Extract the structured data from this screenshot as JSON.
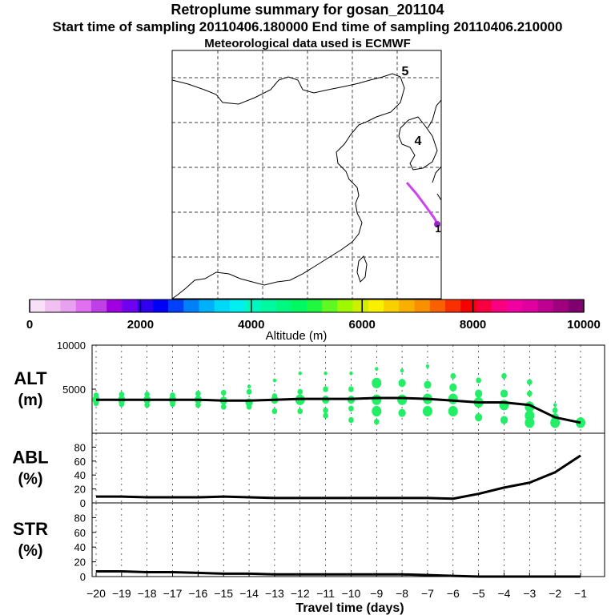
{
  "header": {
    "title": "Retroplume summary for gosan_201104",
    "sampling": "Start time of sampling 20110406.180000     End time of sampling 20110406.210000",
    "met": "Meteorological data used is ECMWF"
  },
  "map": {
    "day_markers": [
      "5",
      "4",
      "1"
    ],
    "colors": {
      "track": "#cc44ee",
      "coast": "#000000",
      "grid": "#000000"
    }
  },
  "colorbar": {
    "ticks": [
      "0",
      "2000",
      "4000",
      "6000",
      "8000",
      "10000"
    ],
    "label": "Altitude (m)",
    "colors": [
      "#f8e0f8",
      "#f0c0f0",
      "#e8a0f0",
      "#e070f0",
      "#c040e8",
      "#a000e0",
      "#7000f0",
      "#3000f0",
      "#0000f8",
      "#0040f8",
      "#0080f8",
      "#00b0f8",
      "#00d8f8",
      "#00f0f0",
      "#00f8c0",
      "#00f8a0",
      "#00f880",
      "#00f860",
      "#20f840",
      "#60f820",
      "#a0f800",
      "#d0f000",
      "#f8f000",
      "#f8d000",
      "#f8b000",
      "#f89000",
      "#f86000",
      "#f83000",
      "#f80000",
      "#f80040",
      "#f80080",
      "#f000a0",
      "#e000a0",
      "#c00090",
      "#a00080",
      "#800070"
    ]
  },
  "chart_data": [
    {
      "type": "line+scatter",
      "name": "ALT",
      "ylabel": [
        "ALT",
        "(m)"
      ],
      "yticks": [
        "10000",
        "5000"
      ],
      "ylim": [
        0,
        10000
      ],
      "x": [
        -20,
        -19,
        -18,
        -17,
        -16,
        -15,
        -14,
        -13,
        -12,
        -11,
        -10,
        -9,
        -8,
        -7,
        -6,
        -5,
        -4,
        -3,
        -2,
        -1
      ],
      "values": [
        3800,
        3800,
        3800,
        3800,
        3800,
        3700,
        3700,
        3800,
        3900,
        3900,
        3900,
        4000,
        4000,
        3900,
        3700,
        3500,
        3500,
        3200,
        1800,
        1200
      ],
      "line_color": "#000000",
      "scatter_color": "#22ee66",
      "scatter_points": [
        [
          -20,
          3800,
          3
        ],
        [
          -20,
          4300,
          2
        ],
        [
          -20,
          3400,
          2
        ],
        [
          -19,
          3800,
          3
        ],
        [
          -19,
          4400,
          2
        ],
        [
          -19,
          3300,
          2
        ],
        [
          -18,
          3800,
          3
        ],
        [
          -18,
          4400,
          2
        ],
        [
          -18,
          3200,
          2
        ],
        [
          -17,
          3800,
          3
        ],
        [
          -17,
          4300,
          2
        ],
        [
          -17,
          3300,
          2
        ],
        [
          -16,
          3800,
          3
        ],
        [
          -16,
          4500,
          2
        ],
        [
          -16,
          3200,
          2
        ],
        [
          -15,
          3700,
          3
        ],
        [
          -15,
          4600,
          2
        ],
        [
          -15,
          3000,
          2
        ],
        [
          -14,
          3500,
          3
        ],
        [
          -14,
          4700,
          2
        ],
        [
          -14,
          5300,
          1
        ],
        [
          -14,
          3000,
          2
        ],
        [
          -13,
          3800,
          3
        ],
        [
          -13,
          2500,
          2
        ],
        [
          -13,
          6000,
          1
        ],
        [
          -13,
          4200,
          2
        ],
        [
          -12,
          3800,
          4
        ],
        [
          -12,
          2500,
          2
        ],
        [
          -12,
          6800,
          1
        ],
        [
          -12,
          4700,
          2
        ],
        [
          -11,
          3800,
          3
        ],
        [
          -11,
          2600,
          2
        ],
        [
          -11,
          6800,
          1
        ],
        [
          -11,
          5000,
          2
        ],
        [
          -11,
          2000,
          2
        ],
        [
          -10,
          3800,
          3
        ],
        [
          -10,
          2800,
          2
        ],
        [
          -10,
          5000,
          2
        ],
        [
          -10,
          1500,
          2
        ],
        [
          -10,
          6800,
          1
        ],
        [
          -9,
          3800,
          4
        ],
        [
          -9,
          5700,
          4
        ],
        [
          -9,
          2500,
          4
        ],
        [
          -9,
          1300,
          2
        ],
        [
          -9,
          7300,
          1
        ],
        [
          -8,
          3800,
          4
        ],
        [
          -8,
          5700,
          3
        ],
        [
          -8,
          2300,
          3
        ],
        [
          -8,
          7100,
          1
        ],
        [
          -7,
          3900,
          4
        ],
        [
          -7,
          5500,
          3
        ],
        [
          -7,
          2500,
          4
        ],
        [
          -7,
          7600,
          1
        ],
        [
          -6,
          3900,
          4
        ],
        [
          -6,
          5200,
          3
        ],
        [
          -6,
          2500,
          4
        ],
        [
          -6,
          6500,
          2
        ],
        [
          -5,
          3500,
          4
        ],
        [
          -5,
          4500,
          3
        ],
        [
          -5,
          1800,
          3
        ],
        [
          -5,
          6000,
          2
        ],
        [
          -4,
          3200,
          4
        ],
        [
          -4,
          4500,
          3
        ],
        [
          -4,
          1500,
          3
        ],
        [
          -4,
          6500,
          2
        ],
        [
          -3,
          3000,
          4
        ],
        [
          -3,
          4500,
          2
        ],
        [
          -3,
          2000,
          4
        ],
        [
          -3,
          1200,
          4
        ],
        [
          -3,
          5800,
          2
        ],
        [
          -2,
          1800,
          3
        ],
        [
          -2,
          1200,
          4
        ],
        [
          -2,
          2600,
          2
        ],
        [
          -2,
          3200,
          1
        ],
        [
          -1,
          1200,
          4
        ],
        [
          -1,
          1500,
          2
        ]
      ]
    },
    {
      "type": "line",
      "name": "ABL",
      "ylabel": [
        "ABL",
        "(%)"
      ],
      "yticks": [
        "80",
        "60",
        "40",
        "20",
        "0"
      ],
      "ylim": [
        0,
        100
      ],
      "x": [
        -20,
        -19,
        -18,
        -17,
        -16,
        -15,
        -14,
        -13,
        -12,
        -11,
        -10,
        -9,
        -8,
        -7,
        -6,
        -5,
        -4,
        -3,
        -2,
        -1
      ],
      "values": [
        9,
        9,
        8,
        8,
        8,
        9,
        8,
        7,
        7,
        7,
        7,
        7,
        7,
        7,
        6,
        13,
        22,
        29,
        44,
        68
      ]
    },
    {
      "type": "line",
      "name": "STR",
      "ylabel": [
        "STR",
        "(%)"
      ],
      "yticks": [
        "80",
        "60",
        "40",
        "20",
        "0"
      ],
      "ylim": [
        0,
        100
      ],
      "x": [
        -20,
        -19,
        -18,
        -17,
        -16,
        -15,
        -14,
        -13,
        -12,
        -11,
        -10,
        -9,
        -8,
        -7,
        -6,
        -5,
        -4,
        -3,
        -2,
        -1
      ],
      "values": [
        7,
        7,
        6,
        6,
        5,
        4,
        4,
        3,
        3,
        3,
        3,
        3,
        3,
        2,
        1,
        0,
        0,
        0,
        0,
        0
      ],
      "xlabel": "Travel time (days)",
      "xticks": [
        "−20",
        "−19",
        "−18",
        "−17",
        "−16",
        "−15",
        "−14",
        "−13",
        "−12",
        "−11",
        "−10",
        "−9",
        "−8",
        "−7",
        "−6",
        "−5",
        "−4",
        "−3",
        "−2",
        "−1"
      ]
    }
  ]
}
